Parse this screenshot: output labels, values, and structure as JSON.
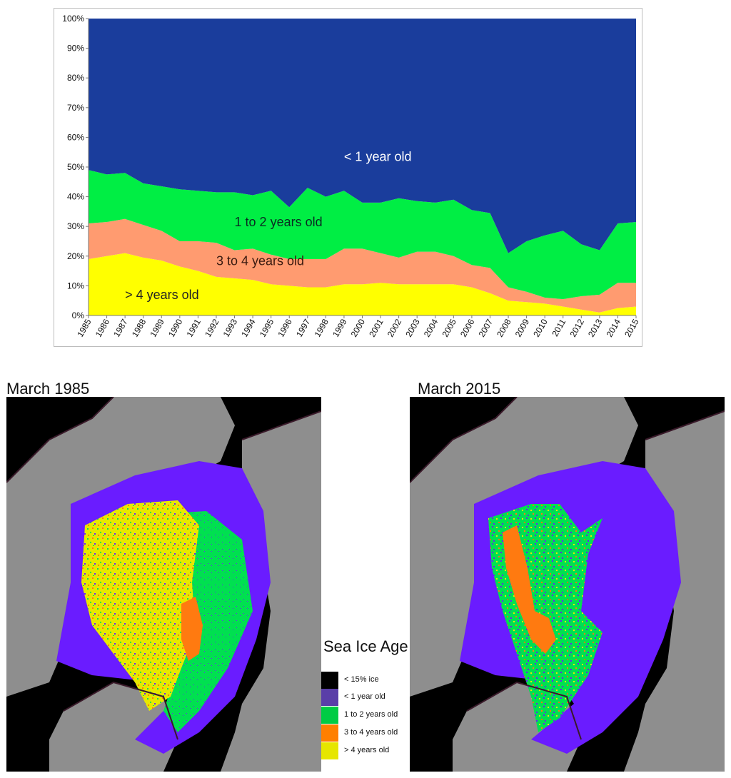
{
  "chart_data": {
    "type": "area",
    "stacked": true,
    "percent": true,
    "x": [
      "1985",
      "1986",
      "1987",
      "1988",
      "1989",
      "1990",
      "1991",
      "1992",
      "1993",
      "1994",
      "1995",
      "1996",
      "1997",
      "1998",
      "1999",
      "2000",
      "2001",
      "2002",
      "2003",
      "2004",
      "2005",
      "2006",
      "2007",
      "2008",
      "2009",
      "2010",
      "2011",
      "2012",
      "2013",
      "2014",
      "2015"
    ],
    "yticks": [
      "0%",
      "10%",
      "20%",
      "30%",
      "40%",
      "50%",
      "60%",
      "70%",
      "80%",
      "90%",
      "100%"
    ],
    "ylim": [
      0,
      100
    ],
    "grid": false,
    "series": [
      {
        "name": "> 4 years old",
        "color": "#ffff00",
        "values": [
          19,
          20,
          21,
          19.5,
          18.5,
          16.5,
          15,
          13,
          12.5,
          12,
          10.5,
          10,
          9.5,
          9.5,
          10.5,
          10.5,
          11,
          10.5,
          10.5,
          10.5,
          10.5,
          9.5,
          7.5,
          5,
          4.5,
          4,
          3,
          2,
          1,
          2.5,
          3
        ]
      },
      {
        "name": "3 to 4 years old",
        "color": "#ff9b70",
        "values": [
          12,
          11.5,
          11.5,
          11,
          10,
          8.5,
          10,
          11.5,
          9.5,
          10.5,
          10,
          9,
          9.5,
          9.5,
          12,
          12,
          10,
          9,
          11,
          11,
          9.5,
          7.5,
          8.5,
          4.5,
          3.5,
          2,
          2.5,
          4.5,
          6,
          8.5,
          8
        ]
      },
      {
        "name": "1 to 2 years old",
        "color": "#00ee44",
        "values": [
          18,
          16,
          15.5,
          14,
          15,
          17.5,
          17,
          17,
          19.5,
          18,
          21.5,
          17.5,
          24,
          21,
          19.5,
          15.5,
          17,
          20,
          17,
          16.5,
          19,
          18.5,
          18.5,
          11.5,
          17,
          21,
          23,
          17.5,
          15,
          20,
          20.5
        ]
      },
      {
        "name": "< 1 year old",
        "color": "#1a3d9c",
        "values": [
          51,
          52.5,
          52,
          55.5,
          56.5,
          57.5,
          58,
          58.5,
          58.5,
          59.5,
          58,
          63.5,
          57,
          60,
          58,
          62,
          62,
          60.5,
          61.5,
          62,
          61,
          64.5,
          65.5,
          79,
          75,
          73,
          71.5,
          76,
          78,
          69,
          68.5
        ]
      }
    ],
    "annotations": [
      "< 1 year old",
      "1 to 2 years old",
      "3 to 4 years old",
      "> 4 years old"
    ]
  },
  "maps": [
    {
      "title": "March 1985"
    },
    {
      "title": "March 2015"
    }
  ],
  "legend": {
    "title": "Sea Ice Age",
    "items": [
      {
        "label": "< 15% ice",
        "color": "#000000"
      },
      {
        "label": "< 1 year old",
        "color": "#5a3ea8"
      },
      {
        "label": "1 to 2 years old",
        "color": "#00cc44"
      },
      {
        "label": "3 to 4 years old",
        "color": "#ff7f00"
      },
      {
        "label": "> 4 years old",
        "color": "#e6e600"
      }
    ]
  },
  "map_colors": {
    "ocean_ice_free": "#000000",
    "land": "#8e8e8e",
    "coast": "#3a1a2a",
    "first_year": "#6a1cff",
    "second_year": "#00e050",
    "third_fourth": "#ff7a10",
    "multi_year": "#e8e800"
  }
}
